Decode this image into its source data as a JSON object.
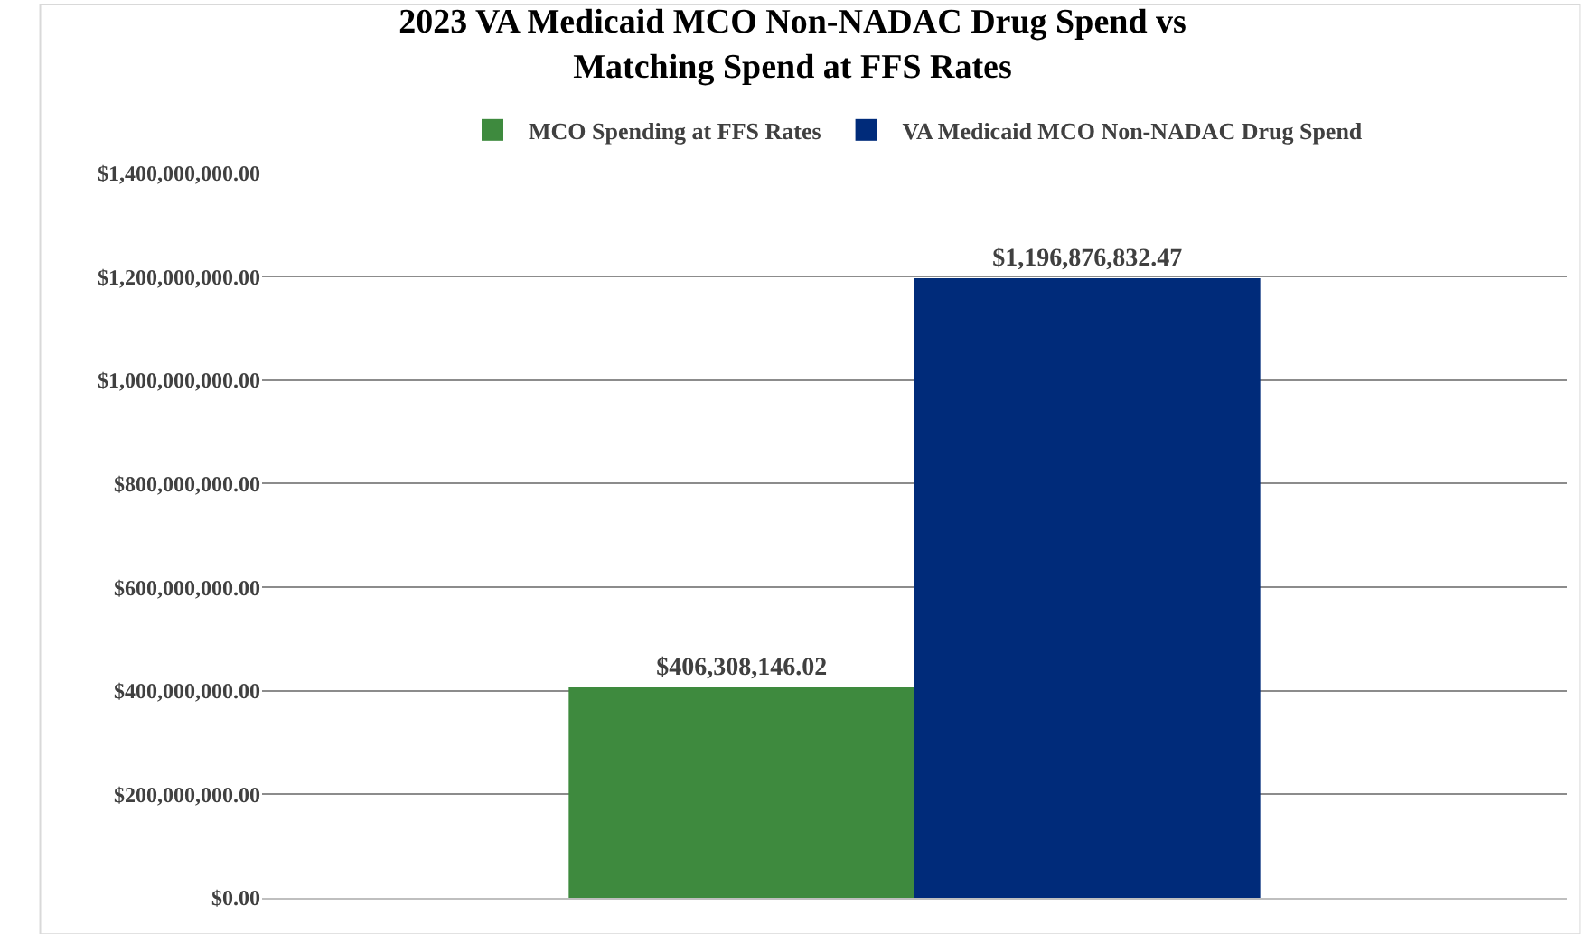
{
  "chart_data": {
    "type": "bar",
    "title": "2023 VA Medicaid MCO Non-NADAC Drug Spend vs\nMatching Spend at FFS Rates",
    "categories": [
      null
    ],
    "series": [
      {
        "name": "MCO Spending at FFS Rates",
        "color": "#3e8a3e",
        "values": [
          406308146.02
        ],
        "value_labels": [
          "$406,308,146.02"
        ]
      },
      {
        "name": "VA Medicaid MCO Non-NADAC Drug Spend",
        "color": "#002b7a",
        "values": [
          1196876832.47
        ],
        "value_labels": [
          "$1,196,876,832.47"
        ]
      }
    ],
    "ylim": [
      0,
      1400000000
    ],
    "yticks": [
      {
        "value": 0,
        "label": "$0.00"
      },
      {
        "value": 200000000,
        "label": "$200,000,000.00"
      },
      {
        "value": 400000000,
        "label": "$400,000,000.00"
      },
      {
        "value": 600000000,
        "label": "$600,000,000.00"
      },
      {
        "value": 800000000,
        "label": "$800,000,000.00"
      },
      {
        "value": 1000000000,
        "label": "$1,000,000,000.00"
      },
      {
        "value": 1200000000,
        "label": "$1,200,000,000.00"
      },
      {
        "value": 1400000000,
        "label": "$1,400,000,000.00"
      }
    ],
    "grid": "y",
    "legend": "top"
  }
}
